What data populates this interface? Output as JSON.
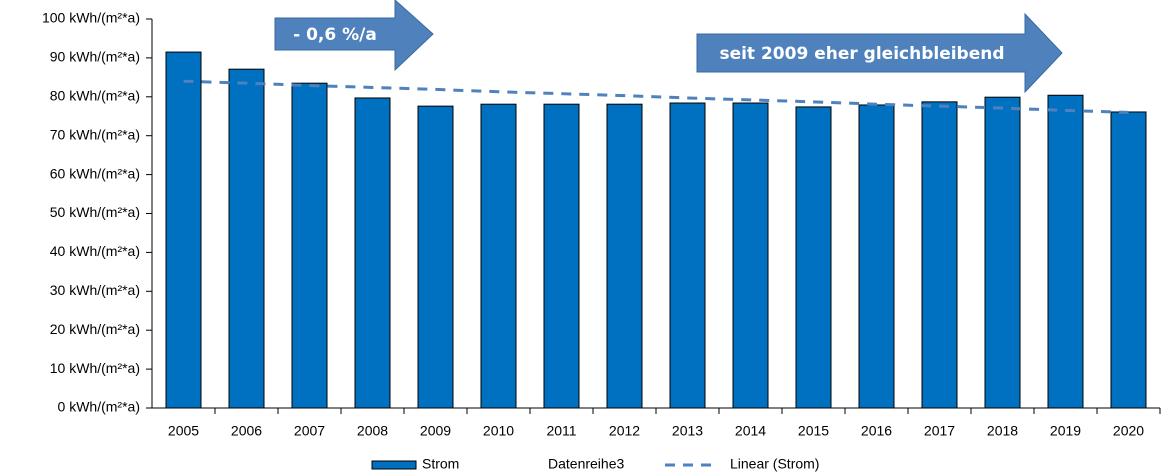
{
  "chart_data": {
    "type": "bar",
    "categories": [
      "2005",
      "2006",
      "2007",
      "2008",
      "2009",
      "2010",
      "2011",
      "2012",
      "2013",
      "2014",
      "2015",
      "2016",
      "2017",
      "2018",
      "2019",
      "2020"
    ],
    "series": [
      {
        "name": "Strom",
        "color": "#0070c0",
        "values": [
          91.5,
          87.1,
          83.5,
          79.7,
          77.6,
          78.1,
          78.1,
          78.1,
          78.4,
          78.4,
          77.4,
          77.9,
          78.7,
          79.9,
          80.4,
          76.1
        ]
      },
      {
        "name": "Datenreihe3",
        "color": "#e8e8e8",
        "values": [
          null,
          null,
          null,
          null,
          null,
          null,
          null,
          null,
          null,
          null,
          null,
          null,
          null,
          null,
          null,
          null
        ]
      },
      {
        "name": "Linear (Strom)",
        "color": "#4f81bd",
        "dashed": true,
        "values": [
          84.0,
          83.5,
          82.9,
          82.4,
          81.9,
          81.3,
          80.8,
          80.3,
          79.7,
          79.2,
          78.7,
          78.1,
          77.6,
          77.1,
          76.5,
          76.0
        ]
      }
    ],
    "ylim": [
      0,
      100
    ],
    "yticks": [
      {
        "value": 0,
        "label": "0 kWh/(m²*a)"
      },
      {
        "value": 10,
        "label": "10 kWh/(m²*a)"
      },
      {
        "value": 20,
        "label": "20 kWh/(m²*a)"
      },
      {
        "value": 30,
        "label": "30 kWh/(m²*a)"
      },
      {
        "value": 40,
        "label": "40 kWh/(m²*a)"
      },
      {
        "value": 50,
        "label": "50 kWh/(m²*a)"
      },
      {
        "value": 60,
        "label": "60 kWh/(m²*a)"
      },
      {
        "value": 70,
        "label": "70 kWh/(m²*a)"
      },
      {
        "value": 80,
        "label": "80 kWh/(m²*a)"
      },
      {
        "value": 90,
        "label": "90 kWh/(m²*a)"
      },
      {
        "value": 100,
        "label": "100 kWh/(m²*a)"
      }
    ],
    "annotations": [
      "- 0,6 %/a",
      "seit 2009 eher gleichbleibend"
    ],
    "grid": false
  }
}
